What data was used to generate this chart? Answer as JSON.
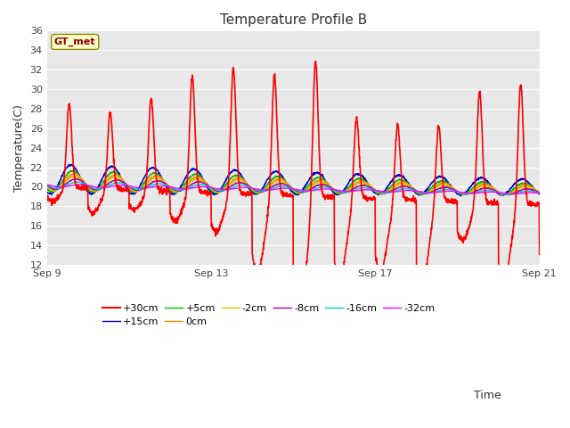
{
  "title": "Temperature Profile B",
  "xlabel": "Time",
  "ylabel": "Temperature(C)",
  "ylim": [
    12,
    36
  ],
  "yticks": [
    12,
    14,
    16,
    18,
    20,
    22,
    24,
    26,
    28,
    30,
    32,
    34,
    36
  ],
  "bg_color": "#e8e8e8",
  "legend_label": "GT_met",
  "series": {
    "+30cm": {
      "color": "#ff0000",
      "lw": 1.2
    },
    "+15cm": {
      "color": "#0000cc",
      "lw": 1.0
    },
    "+5cm": {
      "color": "#00bb00",
      "lw": 1.0
    },
    "0cm": {
      "color": "#ff8800",
      "lw": 1.0
    },
    "-2cm": {
      "color": "#cccc00",
      "lw": 1.0
    },
    "-8cm": {
      "color": "#aa00aa",
      "lw": 1.0
    },
    "-16cm": {
      "color": "#00cccc",
      "lw": 1.0
    },
    "-32cm": {
      "color": "#ff00ff",
      "lw": 1.0
    }
  },
  "xtick_labels": [
    "Sep 9",
    "Sep 13",
    "Sep 17",
    "Sep 21"
  ],
  "xtick_positions": [
    0,
    4,
    8,
    12
  ]
}
